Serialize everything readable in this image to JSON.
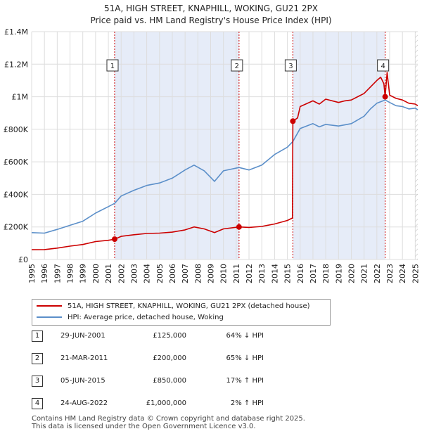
{
  "header": {
    "title_line1": "51A, HIGH STREET, KNAPHILL, WOKING, GU21 2PX",
    "title_line2": "Price paid vs. HM Land Registry's House Price Index (HPI)"
  },
  "colors": {
    "property": "#cc0000",
    "hpi": "#5b8fc9",
    "shade": "#e6ecf8",
    "grid": "#dddddd",
    "vline": "#cc0000",
    "hatch": "#bbbbbb"
  },
  "chart_data": {
    "type": "line",
    "title": "51A, HIGH STREET, KNAPHILL, WOKING, GU21 2PX",
    "subtitle": "Price paid vs. HM Land Registry's House Price Index (HPI)",
    "xlim": [
      1995,
      2025.2
    ],
    "ylim": [
      0,
      1400000
    ],
    "x_ticks": [
      "1995",
      "1996",
      "1997",
      "1998",
      "1999",
      "2000",
      "2001",
      "2002",
      "2003",
      "2004",
      "2005",
      "2006",
      "2007",
      "2008",
      "2009",
      "2010",
      "2011",
      "2012",
      "2013",
      "2014",
      "2015",
      "2016",
      "2017",
      "2018",
      "2019",
      "2020",
      "2021",
      "2022",
      "2023",
      "2024",
      "2025"
    ],
    "y_ticks": [
      {
        "value": 0,
        "label": "£0"
      },
      {
        "value": 200000,
        "label": "£200K"
      },
      {
        "value": 400000,
        "label": "£400K"
      },
      {
        "value": 600000,
        "label": "£600K"
      },
      {
        "value": 800000,
        "label": "£800K"
      },
      {
        "value": 1000000,
        "label": "£1M"
      },
      {
        "value": 1200000,
        "label": "£1.2M"
      },
      {
        "value": 1400000,
        "label": "£1.4M"
      }
    ],
    "shaded_ranges": [
      [
        2001.49,
        2011.22
      ],
      [
        2015.43,
        2022.65
      ]
    ],
    "series": [
      {
        "name": "51A, HIGH STREET, KNAPHILL, WOKING, GU21 2PX (detached house)",
        "color": "#cc0000",
        "points": [
          [
            1995,
            60000
          ],
          [
            1996,
            61000
          ],
          [
            1997,
            70000
          ],
          [
            1998,
            82000
          ],
          [
            1999,
            92000
          ],
          [
            2000,
            110000
          ],
          [
            2001,
            118000
          ],
          [
            2001.49,
            125000
          ],
          [
            2002,
            142000
          ],
          [
            2003,
            152000
          ],
          [
            2004,
            160000
          ],
          [
            2005,
            162000
          ],
          [
            2006,
            168000
          ],
          [
            2007,
            182000
          ],
          [
            2007.7,
            200000
          ],
          [
            2008.5,
            188000
          ],
          [
            2009.3,
            165000
          ],
          [
            2010,
            188000
          ],
          [
            2011.22,
            200000
          ],
          [
            2012,
            197000
          ],
          [
            2013,
            203000
          ],
          [
            2014,
            218000
          ],
          [
            2015,
            240000
          ],
          [
            2015.4,
            255000
          ],
          [
            2015.43,
            850000
          ],
          [
            2015.8,
            870000
          ],
          [
            2016,
            940000
          ],
          [
            2017,
            975000
          ],
          [
            2017.5,
            955000
          ],
          [
            2018,
            985000
          ],
          [
            2019,
            965000
          ],
          [
            2019.5,
            975000
          ],
          [
            2020,
            980000
          ],
          [
            2021,
            1020000
          ],
          [
            2021.5,
            1060000
          ],
          [
            2022,
            1100000
          ],
          [
            2022.3,
            1120000
          ],
          [
            2022.55,
            1080000
          ],
          [
            2022.65,
            1000000
          ],
          [
            2022.8,
            1150000
          ],
          [
            2023,
            1010000
          ],
          [
            2023.5,
            990000
          ],
          [
            2024,
            980000
          ],
          [
            2024.5,
            960000
          ],
          [
            2025,
            955000
          ],
          [
            2025.2,
            945000
          ]
        ]
      },
      {
        "name": "HPI: Average price, detached house, Woking",
        "color": "#5b8fc9",
        "points": [
          [
            1995,
            165000
          ],
          [
            1996,
            162000
          ],
          [
            1997,
            185000
          ],
          [
            1998,
            210000
          ],
          [
            1999,
            235000
          ],
          [
            2000,
            285000
          ],
          [
            2001,
            325000
          ],
          [
            2001.49,
            345000
          ],
          [
            2002,
            390000
          ],
          [
            2003,
            425000
          ],
          [
            2004,
            455000
          ],
          [
            2005,
            470000
          ],
          [
            2006,
            500000
          ],
          [
            2007,
            550000
          ],
          [
            2007.7,
            580000
          ],
          [
            2008.5,
            545000
          ],
          [
            2009.3,
            480000
          ],
          [
            2010,
            545000
          ],
          [
            2011.22,
            565000
          ],
          [
            2012,
            550000
          ],
          [
            2013,
            580000
          ],
          [
            2014,
            645000
          ],
          [
            2015,
            690000
          ],
          [
            2015.43,
            725000
          ],
          [
            2016,
            805000
          ],
          [
            2017,
            835000
          ],
          [
            2017.5,
            815000
          ],
          [
            2018,
            830000
          ],
          [
            2019,
            820000
          ],
          [
            2020,
            835000
          ],
          [
            2021,
            880000
          ],
          [
            2021.5,
            925000
          ],
          [
            2022,
            960000
          ],
          [
            2022.65,
            980000
          ],
          [
            2023,
            965000
          ],
          [
            2023.5,
            945000
          ],
          [
            2024,
            940000
          ],
          [
            2024.5,
            925000
          ],
          [
            2025,
            930000
          ],
          [
            2025.2,
            920000
          ]
        ]
      }
    ],
    "sales": [
      {
        "num": "1",
        "x": 2001.49,
        "value": 125000,
        "date": "29-JUN-2001",
        "price": "£125,000",
        "hpi": "64% ↓ HPI"
      },
      {
        "num": "2",
        "x": 2011.22,
        "value": 200000,
        "date": "21-MAR-2011",
        "price": "£200,000",
        "hpi": "65% ↓ HPI"
      },
      {
        "num": "3",
        "x": 2015.43,
        "value": 850000,
        "date": "05-JUN-2015",
        "price": "£850,000",
        "hpi": "17% ↑ HPI"
      },
      {
        "num": "4",
        "x": 2022.65,
        "value": 1000000,
        "date": "24-AUG-2022",
        "price": "£1,000,000",
        "hpi": "2% ↑ HPI"
      }
    ]
  },
  "legend": {
    "property_label": "51A, HIGH STREET, KNAPHILL, WOKING, GU21 2PX (detached house)",
    "hpi_label": "HPI: Average price, detached house, Woking"
  },
  "footer": {
    "line1": "Contains HM Land Registry data © Crown copyright and database right 2025.",
    "line2": "This data is licensed under the Open Government Licence v3.0."
  }
}
